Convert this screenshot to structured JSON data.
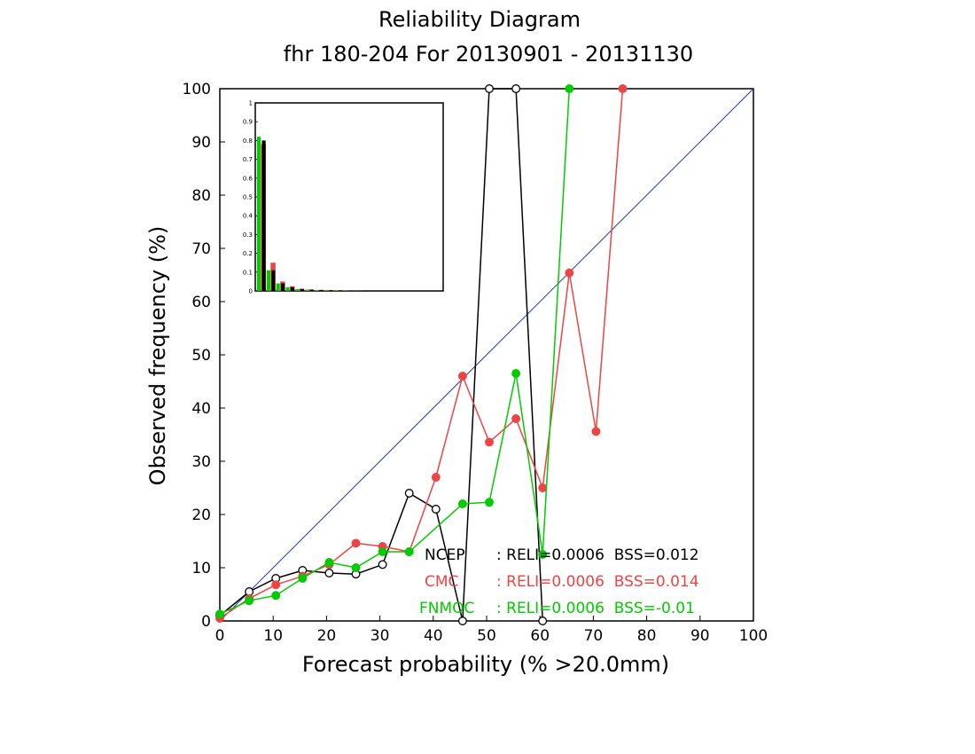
{
  "chart_data": {
    "type": "line",
    "title": "Reliability Diagram",
    "subtitle": "fhr 180-204 For 20130901 - 20131130",
    "xlabel": "Forecast probability (% >20.0mm)",
    "ylabel": "Observed frequency (%)",
    "xlim": [
      0,
      100
    ],
    "ylim": [
      0,
      100
    ],
    "x_ticks": [
      "0",
      "10",
      "20",
      "30",
      "40",
      "50",
      "60",
      "70",
      "80",
      "90",
      "100"
    ],
    "y_ticks": [
      "0",
      "10",
      "20",
      "30",
      "40",
      "50",
      "60",
      "70",
      "80",
      "90",
      "100"
    ],
    "grid": false,
    "diagonal_color": "#2233bb",
    "series": [
      {
        "name": "NCEP",
        "color": "#000000",
        "marker": "open-circle",
        "x": [
          0,
          5.5,
          10.5,
          15.5,
          20.5,
          25.5,
          30.5,
          35.5,
          40.5,
          45.5,
          50.5,
          55.5,
          60.5
        ],
        "y": [
          1,
          5.5,
          8,
          9.5,
          9,
          8.8,
          10.6,
          24,
          21,
          0,
          100,
          100,
          0
        ]
      },
      {
        "name": "CMC",
        "color": "#ee4444",
        "marker": "filled-circle",
        "x": [
          0,
          5.5,
          10.5,
          15.5,
          20.5,
          25.5,
          30.5,
          35.5,
          40.5,
          45.5,
          50.5,
          55.5,
          60.5,
          65.5,
          70.5,
          75.5
        ],
        "y": [
          0.5,
          4.2,
          6.8,
          8.4,
          10.6,
          14.6,
          14,
          13,
          27,
          46,
          33.6,
          38,
          25,
          65.4,
          35.6,
          100
        ]
      },
      {
        "name": "FNMOC",
        "color": "#00cc00",
        "marker": "filled-circle",
        "x": [
          0,
          5.5,
          10.5,
          15.5,
          20.5,
          25.5,
          30.5,
          35.5,
          45.5,
          50.5,
          55.5,
          60.5,
          65.5
        ],
        "y": [
          1.3,
          3.8,
          4.8,
          8,
          11,
          10,
          13,
          13,
          22,
          22.3,
          46.5,
          12.5,
          100
        ]
      }
    ],
    "legend": {
      "placement": "bottom-right",
      "entries": [
        {
          "name": "NCEP",
          "stats": ": RELI=0.0006  BSS=0.012",
          "color": "#000000"
        },
        {
          "name": "CMC",
          "stats": ": RELI=0.0006  BSS=0.014",
          "color": "#ee4444"
        },
        {
          "name": "FNMOC",
          "stats": ": RELI=0.0006  BSS=-0.01",
          "color": "#00cc00"
        }
      ]
    },
    "inset": {
      "type": "bar",
      "placement": "top-left",
      "ylim": [
        0,
        1
      ],
      "y_ticks": [
        "0",
        "0.1",
        "0.2",
        "0.3",
        "0.4",
        "0.5",
        "0.6",
        "0.7",
        "0.8",
        "0.9",
        "1"
      ],
      "bins": [
        "0",
        "5",
        "10",
        "15",
        "20",
        "25",
        "30",
        "35",
        "40",
        "45",
        "50"
      ],
      "series": [
        {
          "name": "NCEP",
          "color": "#000000",
          "values": [
            0.8,
            0.11,
            0.04,
            0.02,
            0.01,
            0.007,
            0.005,
            0.004,
            0.003,
            0.002,
            0.001
          ]
        },
        {
          "name": "CMC",
          "color": "#ee4444",
          "values": [
            0.78,
            0.15,
            0.05,
            0.025,
            0.012,
            0.008,
            0.006,
            0.004,
            0.003,
            0.002,
            0.001
          ]
        },
        {
          "name": "FNMOC",
          "color": "#00cc00",
          "values": [
            0.82,
            0.11,
            0.04,
            0.02,
            0.01,
            0.007,
            0.005,
            0.004,
            0.003,
            0.002,
            0.001
          ]
        }
      ]
    }
  }
}
